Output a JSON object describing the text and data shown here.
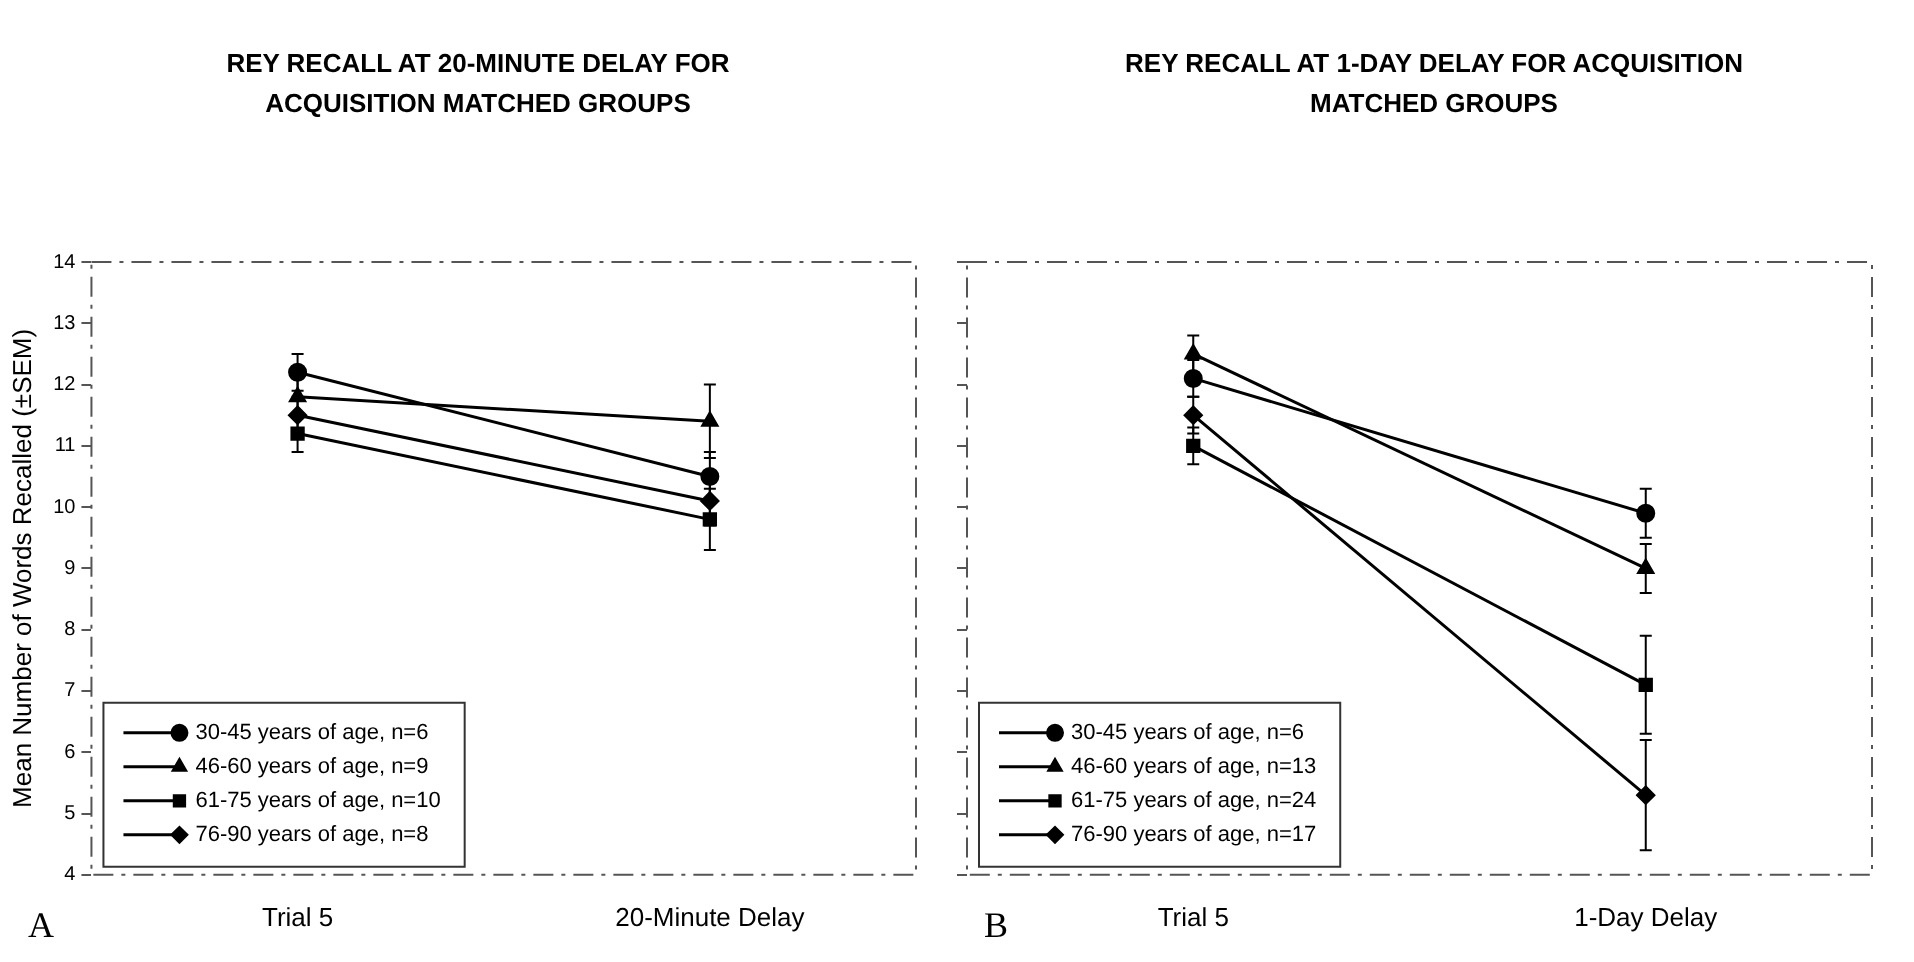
{
  "chart_data": [
    {
      "type": "line",
      "title": "REY RECALL AT 20-MINUTE DELAY FOR ACQUISITION MATCHED GROUPS",
      "ylabel": "Mean Number of Words Recalled (±SEM)",
      "categories": [
        "Trial 5",
        "20-Minute Delay"
      ],
      "series": [
        {
          "name": "30-45 years of age, n=6",
          "color": "#000000",
          "marker": "circle",
          "values": [
            12.2,
            10.5
          ],
          "errors": [
            0.3,
            0.4
          ]
        },
        {
          "name": "46-60 years of age, n=9",
          "color": "#000000",
          "marker": "triangle",
          "values": [
            11.8,
            11.4
          ],
          "errors": [
            0.3,
            0.6
          ]
        },
        {
          "name": "61-75 years of age, n=10",
          "color": "#000000",
          "marker": "square",
          "values": [
            11.2,
            9.8
          ],
          "errors": [
            0.3,
            0.5
          ]
        },
        {
          "name": "76-90 years of age, n=8",
          "color": "#000000",
          "marker": "diamond",
          "values": [
            11.5,
            10.1
          ],
          "errors": [
            0.3,
            0.4
          ]
        }
      ],
      "ylim": [
        4,
        14
      ],
      "yticks": [
        4,
        5,
        6,
        7,
        8,
        9,
        10,
        11,
        12,
        13,
        14
      ],
      "grid": false,
      "legend": "bottom left",
      "annotations": [
        "A"
      ]
    },
    {
      "type": "line",
      "title": "REY RECALL AT 1-DAY DELAY FOR ACQUISITION MATCHED GROUPS",
      "categories": [
        "Trial 5",
        "1-Day Delay"
      ],
      "series": [
        {
          "name": "30-45 years of age, n=6",
          "color": "#000000",
          "marker": "circle",
          "values": [
            12.1,
            9.9
          ],
          "errors": [
            0.3,
            0.4
          ]
        },
        {
          "name": "46-60 years of age, n=13",
          "color": "#000000",
          "marker": "triangle",
          "values": [
            12.5,
            9.0
          ],
          "errors": [
            0.3,
            0.4
          ]
        },
        {
          "name": "61-75 years of age, n=24",
          "color": "#000000",
          "marker": "square",
          "values": [
            11.0,
            7.1
          ],
          "errors": [
            0.3,
            0.8
          ]
        },
        {
          "name": "76-90 years of age, n=17",
          "color": "#000000",
          "marker": "diamond",
          "values": [
            11.5,
            5.3
          ],
          "errors": [
            0.3,
            0.9
          ]
        }
      ],
      "ylim": [
        4,
        14
      ],
      "yticks": [
        4,
        5,
        6,
        7,
        8,
        9,
        10,
        11,
        12,
        13,
        14
      ],
      "tick_labels": "x",
      "grid": false,
      "legend": "bottom left",
      "annotations": [
        "B"
      ]
    }
  ]
}
